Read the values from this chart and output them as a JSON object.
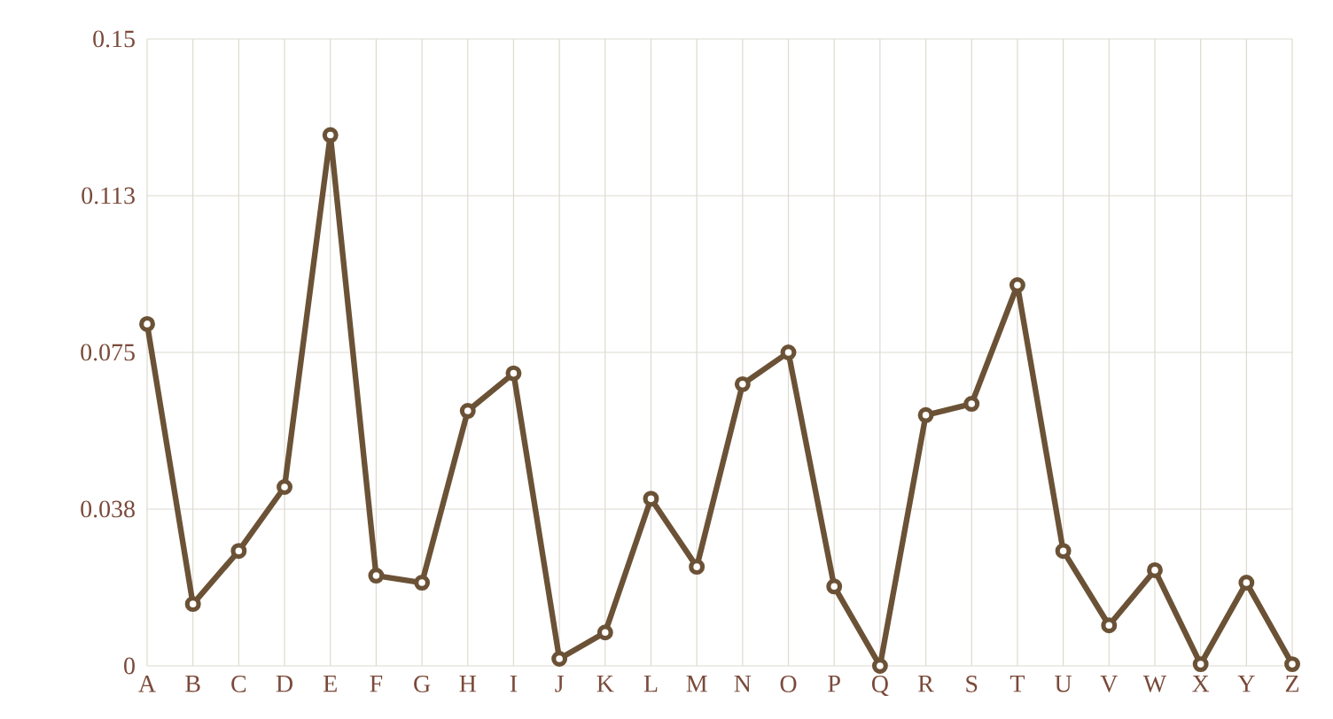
{
  "chart_data": {
    "type": "line",
    "categories": [
      "A",
      "B",
      "C",
      "D",
      "E",
      "F",
      "G",
      "H",
      "I",
      "J",
      "K",
      "L",
      "M",
      "N",
      "O",
      "P",
      "Q",
      "R",
      "S",
      "T",
      "U",
      "V",
      "W",
      "X",
      "Y",
      "Z"
    ],
    "series": [
      {
        "color": "#6b5236",
        "values": [
          0.0818,
          0.0148,
          0.0275,
          0.0428,
          0.127,
          0.0216,
          0.0199,
          0.061,
          0.07,
          0.0017,
          0.008,
          0.04,
          0.0237,
          0.0674,
          0.075,
          0.019,
          0.0,
          0.06,
          0.0627,
          0.0911,
          0.0275,
          0.0097,
          0.0229,
          0.0004,
          0.0199,
          0.0004
        ]
      }
    ],
    "ylim": [
      0,
      0.15
    ],
    "yticks": [
      0,
      {
        "value": 0.0375,
        "label": "0.038"
      },
      0.075,
      {
        "value": 0.1125,
        "label": "0.113"
      },
      0.15
    ],
    "grid": true,
    "marker": "circle",
    "line_style": "solid"
  }
}
